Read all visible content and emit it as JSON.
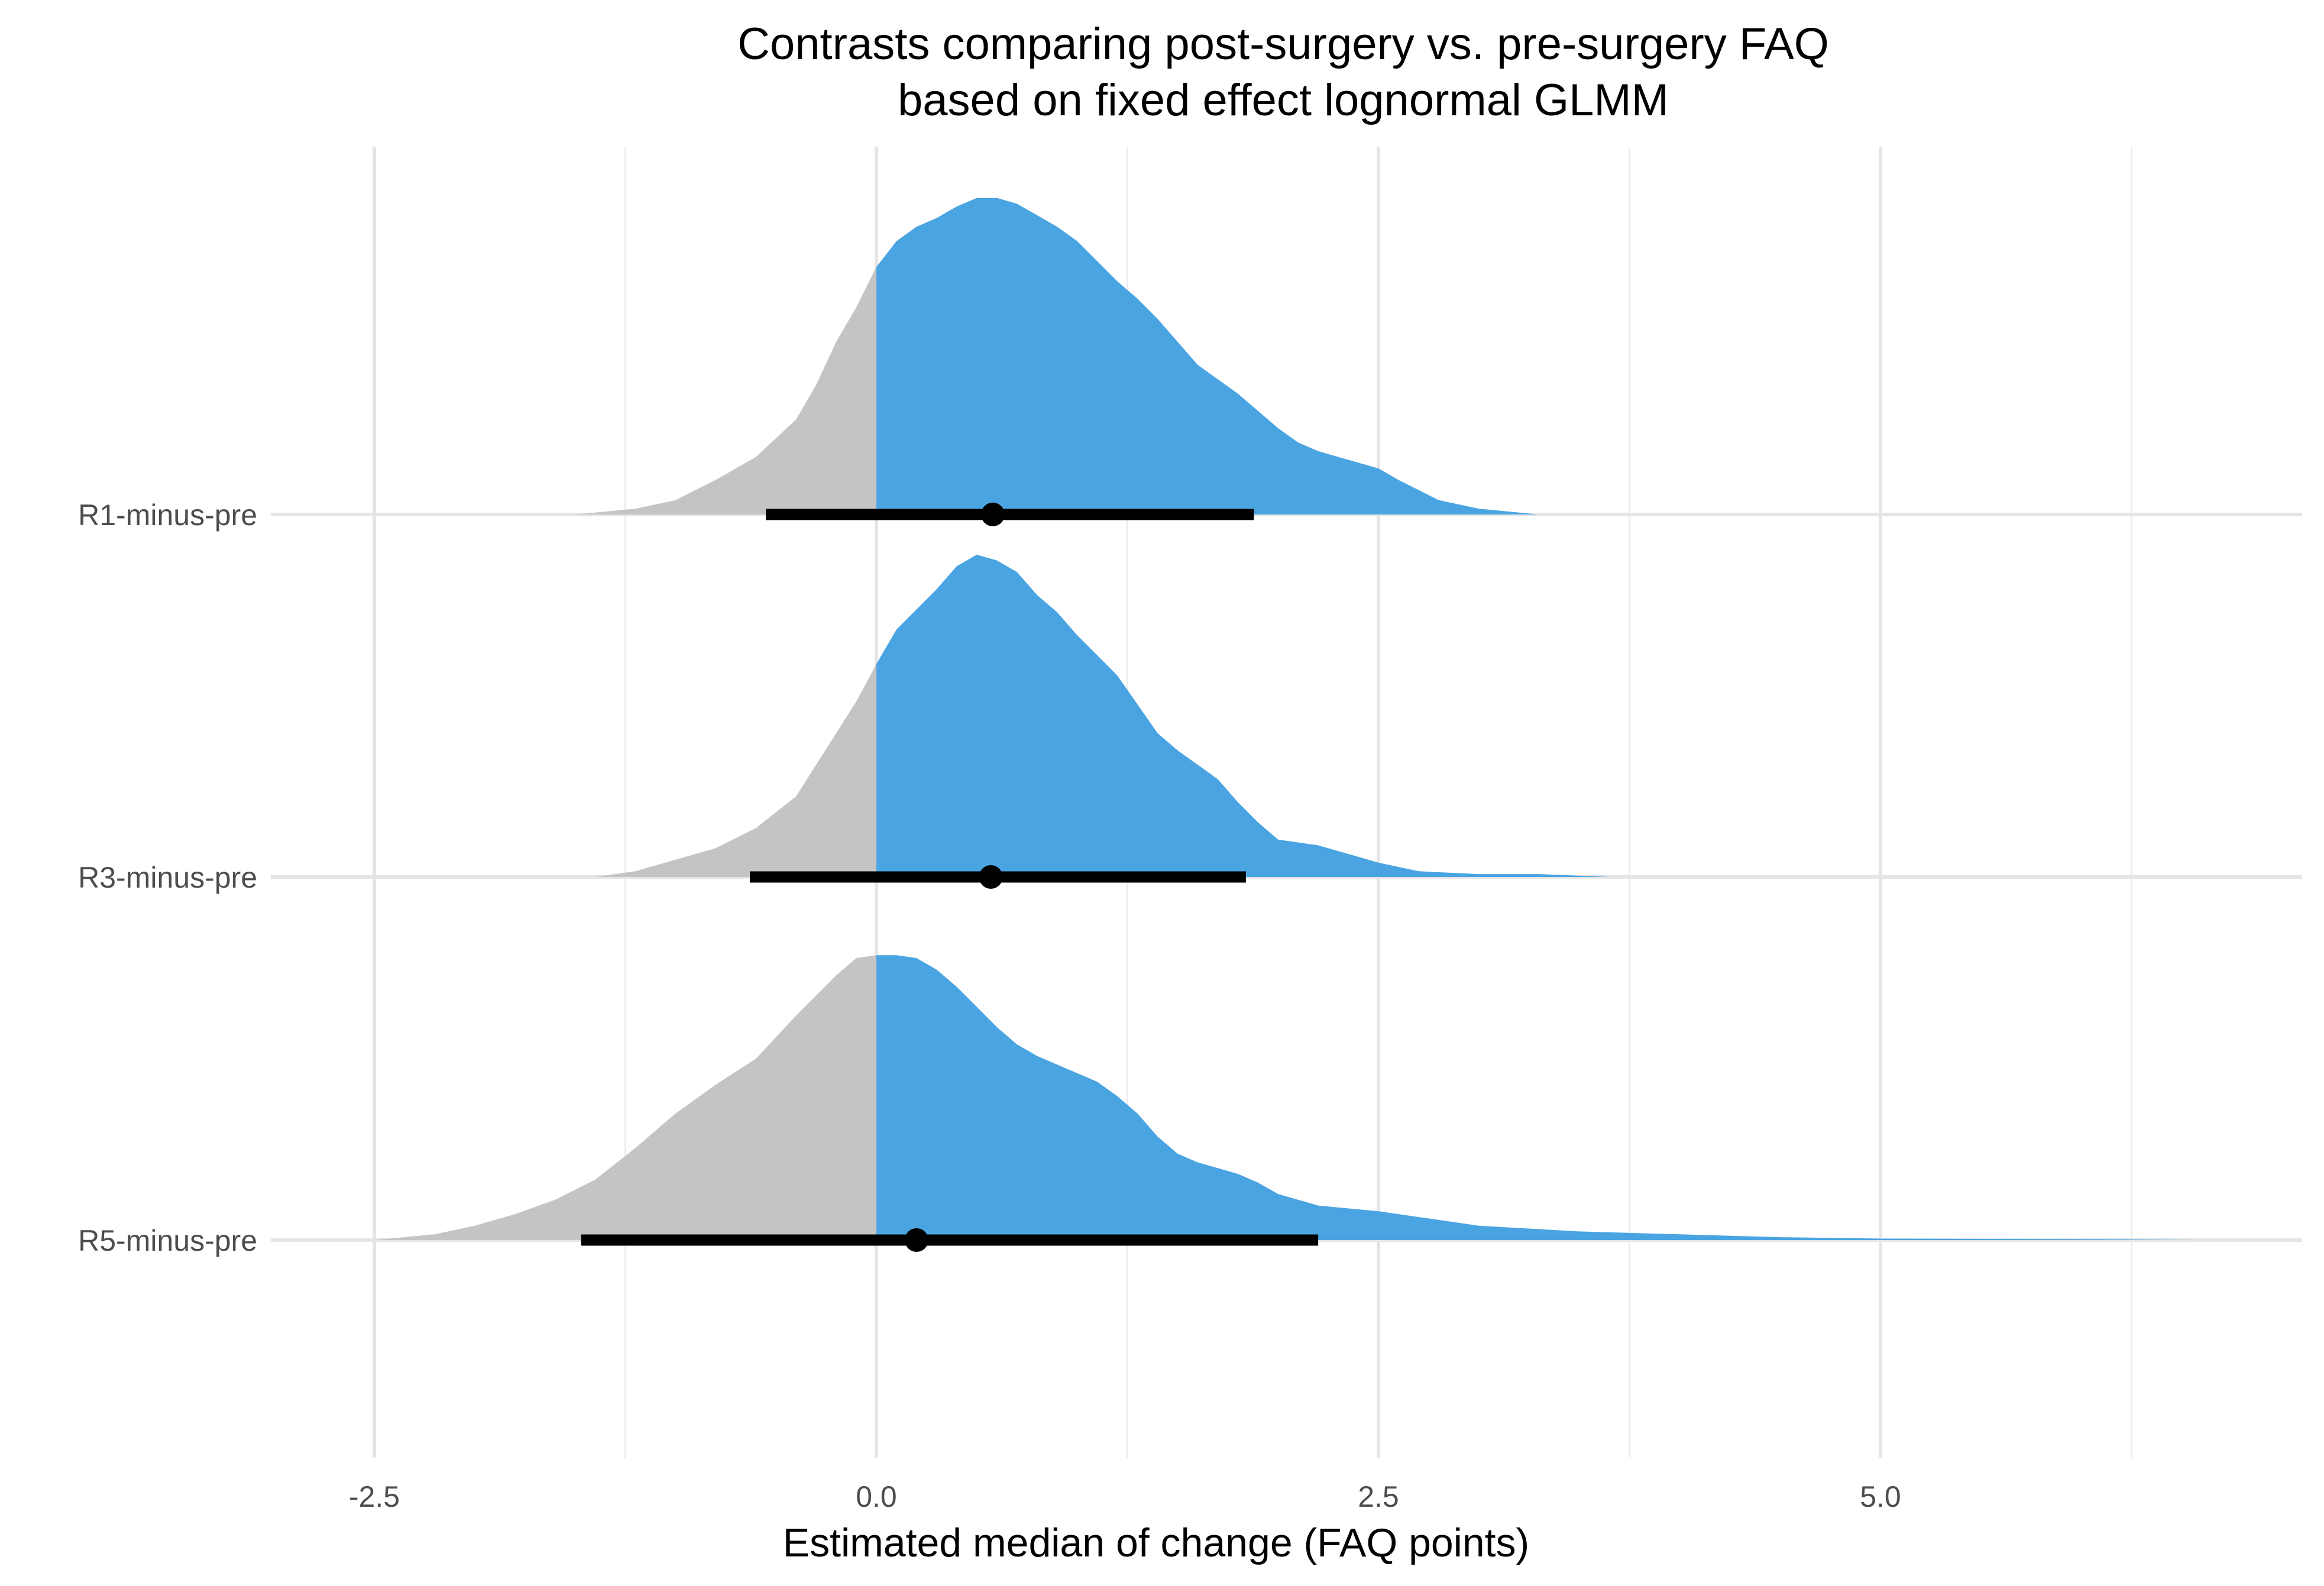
{
  "chart_data": {
    "type": "area",
    "title_lines": [
      "Contrasts comparing post-surgery vs. pre-surgery FAQ",
      "based on fixed effect lognormal GLMM"
    ],
    "xlabel": "Estimated median of change (FAQ points)",
    "ylabel": "",
    "xlim": [
      -3.0,
      7.0
    ],
    "x_ticks": [
      -2.5,
      0.0,
      2.5,
      5.0
    ],
    "x_tick_labels": [
      "-2.5",
      "0.0",
      "2.5",
      "5.0"
    ],
    "x_minor_ticks": [
      -1.25,
      1.25,
      3.75,
      6.25
    ],
    "grid": true,
    "fill_threshold": 0.0,
    "colors": {
      "below_zero": "#c4c4c4",
      "above_zero": "#4aa4e2",
      "interval": "#000000"
    },
    "categories": [
      "R1-minus-pre",
      "R3-minus-pre",
      "R5-minus-pre"
    ],
    "series": [
      {
        "name": "R1-minus-pre",
        "point_estimate": 0.58,
        "interval": [
          -0.55,
          1.88
        ],
        "density": [
          [
            -1.5,
            0.0
          ],
          [
            -1.2,
            0.02
          ],
          [
            -1.0,
            0.05
          ],
          [
            -0.8,
            0.12
          ],
          [
            -0.6,
            0.2
          ],
          [
            -0.4,
            0.33
          ],
          [
            -0.3,
            0.45
          ],
          [
            -0.2,
            0.6
          ],
          [
            -0.1,
            0.72
          ],
          [
            0.0,
            0.86
          ],
          [
            0.1,
            0.95
          ],
          [
            0.2,
            1.0
          ],
          [
            0.3,
            1.03
          ],
          [
            0.4,
            1.07
          ],
          [
            0.5,
            1.1
          ],
          [
            0.6,
            1.1
          ],
          [
            0.7,
            1.08
          ],
          [
            0.8,
            1.04
          ],
          [
            0.9,
            1.0
          ],
          [
            1.0,
            0.95
          ],
          [
            1.1,
            0.88
          ],
          [
            1.2,
            0.81
          ],
          [
            1.3,
            0.75
          ],
          [
            1.4,
            0.68
          ],
          [
            1.5,
            0.6
          ],
          [
            1.6,
            0.52
          ],
          [
            1.7,
            0.47
          ],
          [
            1.8,
            0.42
          ],
          [
            1.9,
            0.36
          ],
          [
            2.0,
            0.3
          ],
          [
            2.1,
            0.25
          ],
          [
            2.2,
            0.22
          ],
          [
            2.3,
            0.2
          ],
          [
            2.4,
            0.18
          ],
          [
            2.5,
            0.16
          ],
          [
            2.6,
            0.12
          ],
          [
            2.8,
            0.05
          ],
          [
            3.0,
            0.02
          ],
          [
            3.3,
            0.0
          ]
        ]
      },
      {
        "name": "R3-minus-pre",
        "point_estimate": 0.57,
        "interval": [
          -0.63,
          1.84
        ],
        "density": [
          [
            -1.4,
            0.0
          ],
          [
            -1.2,
            0.02
          ],
          [
            -1.0,
            0.06
          ],
          [
            -0.8,
            0.1
          ],
          [
            -0.6,
            0.17
          ],
          [
            -0.4,
            0.28
          ],
          [
            -0.3,
            0.39
          ],
          [
            -0.2,
            0.5
          ],
          [
            -0.1,
            0.61
          ],
          [
            0.0,
            0.74
          ],
          [
            0.1,
            0.86
          ],
          [
            0.2,
            0.93
          ],
          [
            0.3,
            1.0
          ],
          [
            0.4,
            1.08
          ],
          [
            0.5,
            1.12
          ],
          [
            0.6,
            1.1
          ],
          [
            0.7,
            1.06
          ],
          [
            0.8,
            0.98
          ],
          [
            0.9,
            0.92
          ],
          [
            1.0,
            0.84
          ],
          [
            1.1,
            0.77
          ],
          [
            1.2,
            0.7
          ],
          [
            1.3,
            0.6
          ],
          [
            1.4,
            0.5
          ],
          [
            1.5,
            0.44
          ],
          [
            1.6,
            0.39
          ],
          [
            1.7,
            0.34
          ],
          [
            1.8,
            0.26
          ],
          [
            1.9,
            0.19
          ],
          [
            2.0,
            0.13
          ],
          [
            2.1,
            0.12
          ],
          [
            2.2,
            0.11
          ],
          [
            2.3,
            0.09
          ],
          [
            2.5,
            0.05
          ],
          [
            2.7,
            0.02
          ],
          [
            3.0,
            0.01
          ],
          [
            3.3,
            0.01
          ],
          [
            3.65,
            0.0
          ]
        ]
      },
      {
        "name": "R5-minus-pre",
        "point_estimate": 0.2,
        "interval": [
          -1.47,
          2.2
        ],
        "density": [
          [
            -2.5,
            0.0
          ],
          [
            -2.2,
            0.02
          ],
          [
            -2.0,
            0.05
          ],
          [
            -1.8,
            0.09
          ],
          [
            -1.6,
            0.14
          ],
          [
            -1.4,
            0.21
          ],
          [
            -1.2,
            0.32
          ],
          [
            -1.0,
            0.44
          ],
          [
            -0.8,
            0.54
          ],
          [
            -0.6,
            0.63
          ],
          [
            -0.4,
            0.78
          ],
          [
            -0.2,
            0.92
          ],
          [
            -0.1,
            0.98
          ],
          [
            0.0,
            0.99
          ],
          [
            0.1,
            0.99
          ],
          [
            0.2,
            0.98
          ],
          [
            0.3,
            0.94
          ],
          [
            0.4,
            0.88
          ],
          [
            0.5,
            0.81
          ],
          [
            0.6,
            0.74
          ],
          [
            0.7,
            0.68
          ],
          [
            0.8,
            0.64
          ],
          [
            0.9,
            0.61
          ],
          [
            1.0,
            0.58
          ],
          [
            1.1,
            0.55
          ],
          [
            1.2,
            0.5
          ],
          [
            1.3,
            0.44
          ],
          [
            1.4,
            0.36
          ],
          [
            1.5,
            0.3
          ],
          [
            1.6,
            0.27
          ],
          [
            1.7,
            0.25
          ],
          [
            1.8,
            0.23
          ],
          [
            1.9,
            0.2
          ],
          [
            2.0,
            0.16
          ],
          [
            2.2,
            0.12
          ],
          [
            2.5,
            0.1
          ],
          [
            2.8,
            0.07
          ],
          [
            3.0,
            0.05
          ],
          [
            3.5,
            0.03
          ],
          [
            4.0,
            0.02
          ],
          [
            4.5,
            0.01
          ],
          [
            5.0,
            0.005
          ],
          [
            6.0,
            0.003
          ],
          [
            6.6,
            0.0
          ]
        ]
      }
    ]
  }
}
